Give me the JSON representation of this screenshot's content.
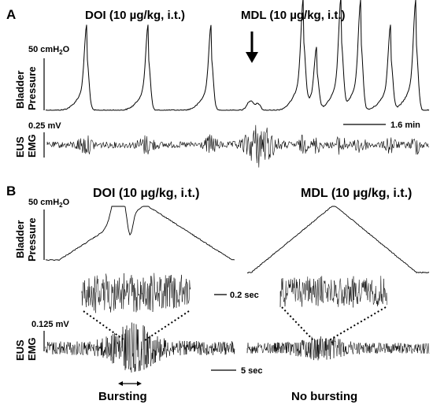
{
  "panel_a": {
    "label": "A",
    "condition_1": "DOI (10 µg/kg, i.t.)",
    "condition_2": "MDL (10 µg/kg, i.t.)",
    "pressure_scale": "50 cmH",
    "pressure_scale_sub": "2",
    "pressure_scale_suffix": "O",
    "ylabel_pressure_1": "Bladder",
    "ylabel_pressure_2": "Pressure",
    "emg_scale": "0.25 mV",
    "ylabel_emg_1": "EUS",
    "ylabel_emg_2": "EMG",
    "time_scale": "1.6 min"
  },
  "panel_b": {
    "label": "B",
    "condition_1": "DOI (10 µg/kg, i.t.)",
    "condition_2": "MDL (10 µg/kg, i.t.)",
    "pressure_scale": "50 cmH",
    "pressure_scale_sub": "2",
    "pressure_scale_suffix": "O",
    "ylabel_pressure_1": "Bladder",
    "ylabel_pressure_2": "Pressure",
    "inset_time_scale": "0.2 sec",
    "emg_scale": "0.125 mV",
    "ylabel_emg_1": "EUS",
    "ylabel_emg_2": "EMG",
    "time_scale": "5 sec",
    "caption_left": "Bursting",
    "caption_right": "No bursting"
  }
}
